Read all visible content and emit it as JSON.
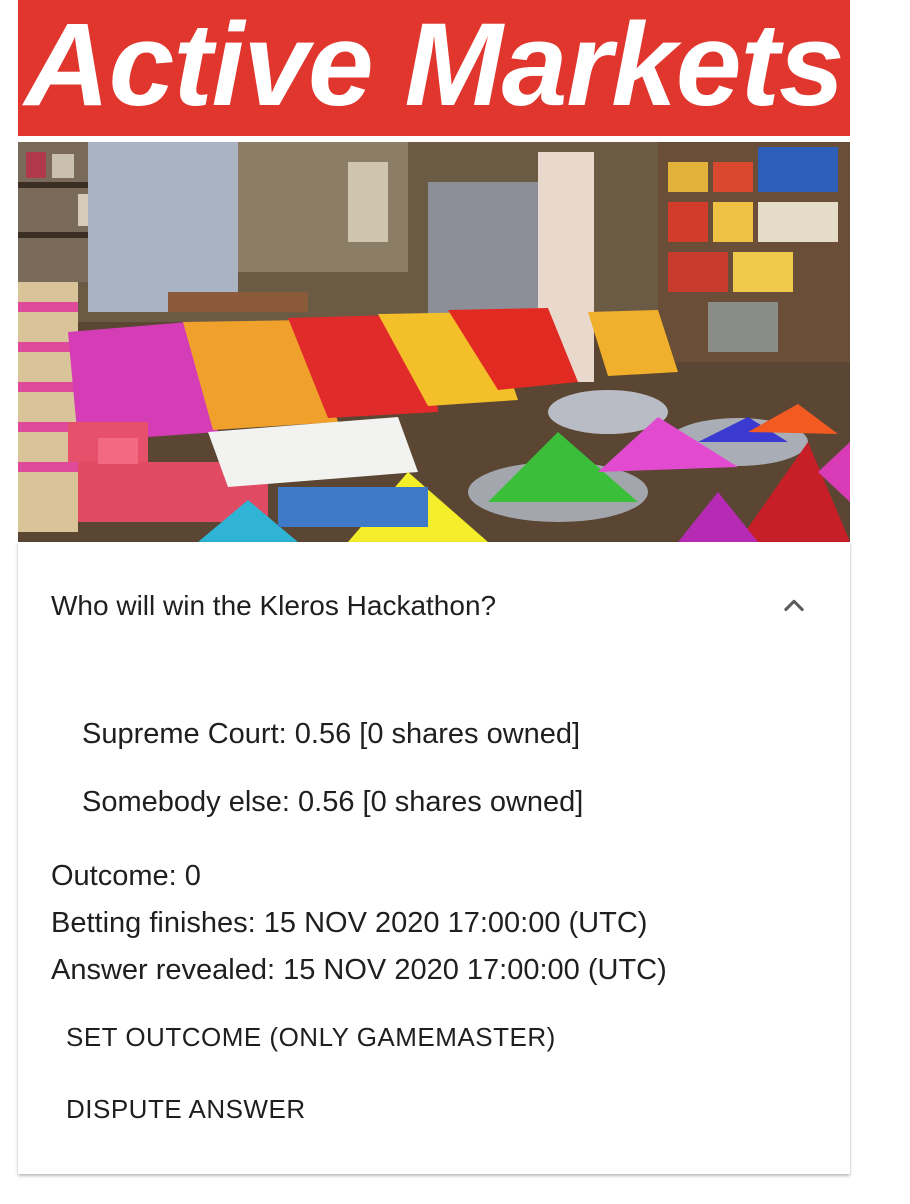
{
  "banner": {
    "title": "Active Markets"
  },
  "market": {
    "question": "Who will win the Kleros Hackathon?",
    "collapse_icon": "chevron-up-icon",
    "options": [
      {
        "label": "Supreme Court: 0.56 [0 shares owned]"
      },
      {
        "label": "Somebody else: 0.56 [0 shares owned]"
      }
    ],
    "outcome": "Outcome: 0",
    "betting_finishes": "Betting finishes: 15 NOV 2020 17:00:00 (UTC)",
    "answer_revealed": "Answer revealed: 15 NOV 2020 17:00:00 (UTC)",
    "actions": {
      "set_outcome": "SET OUTCOME (ONLY GAMEMASTER)",
      "dispute": "DISPUTE ANSWER"
    }
  },
  "colors": {
    "banner_bg": "#e1362d",
    "text": "#1f1f1f"
  }
}
